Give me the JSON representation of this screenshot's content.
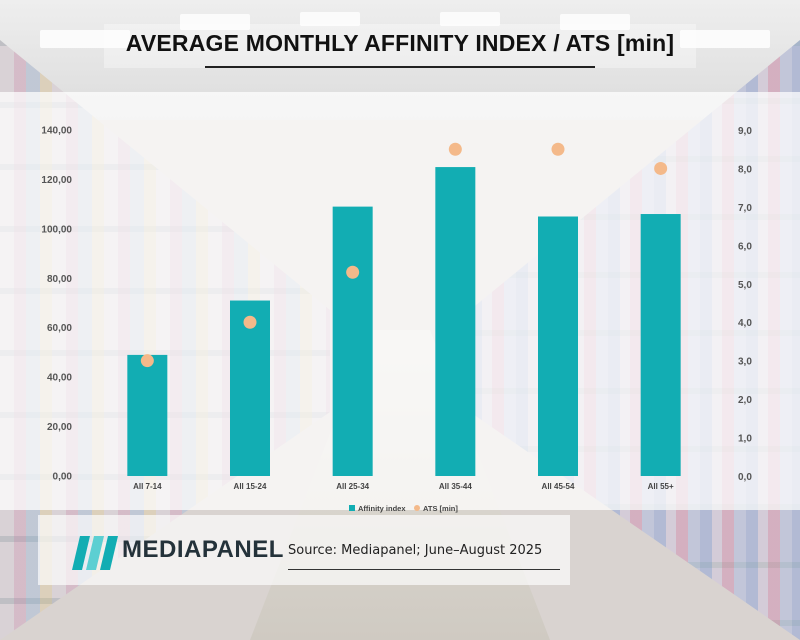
{
  "title": "AVERAGE MONTHLY AFFINITY INDEX / ATS [min]",
  "brand": "MEDIAPANEL",
  "source": "Source: Mediapanel; June–August 2025",
  "colors": {
    "bar": "#12adb3",
    "dot": "#f4b98a",
    "text": "#222222"
  },
  "chart_data": {
    "type": "bar",
    "categories": [
      "All 7-14",
      "All 15-24",
      "All 25-34",
      "All 35-44",
      "All 45-54",
      "All 55+"
    ],
    "series": [
      {
        "name": "Affinity index",
        "type": "bar",
        "axis": "left",
        "values": [
          49,
          71,
          109,
          125,
          105,
          106
        ]
      },
      {
        "name": "ATS [min]",
        "type": "scatter",
        "axis": "right",
        "values": [
          3.0,
          4.0,
          5.3,
          8.5,
          8.5,
          8.0
        ]
      }
    ],
    "y_left": {
      "ylim": [
        0,
        140
      ],
      "ticks": [
        "0,00",
        "20,00",
        "40,00",
        "60,00",
        "80,00",
        "100,00",
        "120,00",
        "140,00"
      ]
    },
    "y_right": {
      "ylim": [
        0,
        9
      ],
      "ticks": [
        "0,0",
        "1,0",
        "2,0",
        "3,0",
        "4,0",
        "5,0",
        "6,0",
        "7,0",
        "8,0",
        "9,0"
      ]
    },
    "legend_position": "bottom"
  }
}
